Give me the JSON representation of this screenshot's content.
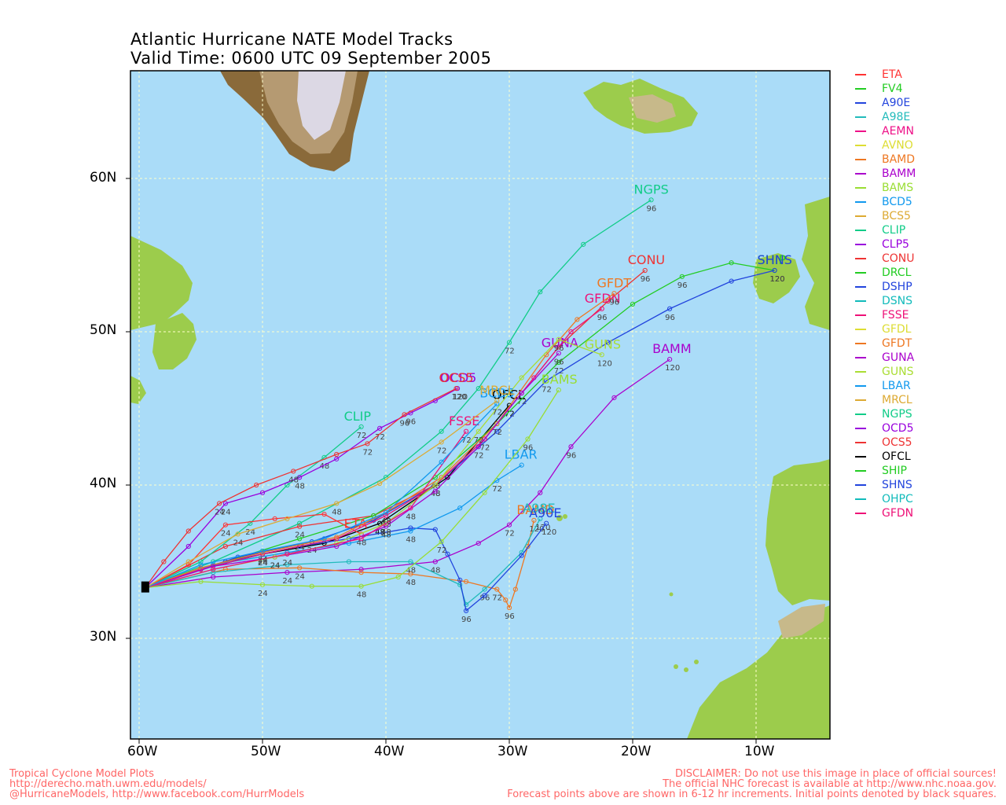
{
  "title": {
    "line1": "Atlantic Hurricane NATE Model Tracks",
    "line2": "Valid Time: 0600 UTC 09 September 2005"
  },
  "axes": {
    "lon_labels": [
      "60W",
      "50W",
      "40W",
      "30W",
      "20W",
      "10W"
    ],
    "lat_labels": [
      "60N",
      "50N",
      "40N",
      "30N"
    ]
  },
  "colors": {
    "ocean": "#aadcf8",
    "land": "#9ccc4c",
    "grid": "#ffffcc"
  },
  "legend": [
    {
      "name": "ETA",
      "color": "#ff3333"
    },
    {
      "name": "FV4",
      "color": "#22cc22"
    },
    {
      "name": "A90E",
      "color": "#2244dd"
    },
    {
      "name": "A98E",
      "color": "#22bbbb"
    },
    {
      "name": "AEMN",
      "color": "#ee1188"
    },
    {
      "name": "AVNO",
      "color": "#dddd33"
    },
    {
      "name": "BAMD",
      "color": "#ee7722"
    },
    {
      "name": "BAMM",
      "color": "#aa00cc"
    },
    {
      "name": "BAMS",
      "color": "#99dd33"
    },
    {
      "name": "BCD5",
      "color": "#1199ee"
    },
    {
      "name": "BCS5",
      "color": "#ddaa33"
    },
    {
      "name": "CLIP",
      "color": "#11cc88"
    },
    {
      "name": "CLP5",
      "color": "#9900dd"
    },
    {
      "name": "CONU",
      "color": "#ee3333"
    },
    {
      "name": "DRCL",
      "color": "#22cc22"
    },
    {
      "name": "DSHP",
      "color": "#2244dd"
    },
    {
      "name": "DSNS",
      "color": "#11bbbb"
    },
    {
      "name": "FSSE",
      "color": "#ee1177"
    },
    {
      "name": "GFDL",
      "color": "#dddd33"
    },
    {
      "name": "GFDT",
      "color": "#ee7722"
    },
    {
      "name": "GUNA",
      "color": "#aa00cc"
    },
    {
      "name": "GUNS",
      "color": "#aadd33"
    },
    {
      "name": "LBAR",
      "color": "#1199ee"
    },
    {
      "name": "MRCL",
      "color": "#ddaa33"
    },
    {
      "name": "NGPS",
      "color": "#11cc88"
    },
    {
      "name": "OCD5",
      "color": "#9900dd"
    },
    {
      "name": "OCS5",
      "color": "#ee3333"
    },
    {
      "name": "OFCL",
      "color": "#000000"
    },
    {
      "name": "SHIP",
      "color": "#22cc22"
    },
    {
      "name": "SHNS",
      "color": "#2244dd"
    },
    {
      "name": "OHPC",
      "color": "#11bbbb"
    },
    {
      "name": "GFDN",
      "color": "#ee1177"
    }
  ],
  "tracks": [
    {
      "name": "NGPS",
      "label": "NGPS",
      "color": "#11cc88",
      "points": [
        [
          -59.5,
          33.3
        ],
        [
          -54,
          35
        ],
        [
          -47,
          37.5
        ],
        [
          -40,
          40.5
        ],
        [
          -35.5,
          43.5
        ],
        [
          -32.5,
          46.3
        ],
        [
          -30,
          49.3
        ],
        [
          -27.5,
          52.6
        ],
        [
          -24,
          55.7
        ],
        [
          -18.5,
          58.6
        ]
      ],
      "hours": [
        "",
        "",
        "",
        "",
        "",
        "",
        "72",
        "",
        "",
        "96"
      ]
    },
    {
      "name": "CONU",
      "label": "CONU",
      "color": "#ee3333",
      "points": [
        [
          -59.5,
          33.3
        ],
        [
          -53,
          36
        ],
        [
          -47,
          37.3
        ],
        [
          -41,
          38
        ],
        [
          -36,
          40
        ],
        [
          -32,
          43
        ],
        [
          -29,
          46
        ],
        [
          -26,
          49
        ],
        [
          -22,
          52
        ],
        [
          -19,
          54
        ]
      ],
      "hours": [
        "",
        "",
        "24",
        "",
        "48",
        "",
        "72",
        "",
        "",
        "96"
      ]
    },
    {
      "name": "OFCL",
      "label": "OFCL",
      "color": "#000000",
      "points": [
        [
          -59.5,
          33.3
        ],
        [
          -55,
          34.5
        ],
        [
          -50,
          35.5
        ],
        [
          -45,
          36.2
        ],
        [
          -40.5,
          37.5
        ],
        [
          -35,
          40.5
        ],
        [
          -30,
          45.2
        ]
      ],
      "hours": [
        "",
        "",
        "24",
        "",
        "48",
        "",
        "72"
      ]
    },
    {
      "name": "SHIP",
      "label": "SHIP",
      "color": "#22cc22",
      "points": [
        [
          -59.5,
          33.3
        ],
        [
          -53,
          35
        ],
        [
          -47,
          36.5
        ],
        [
          -41,
          38
        ],
        [
          -36,
          40.5
        ],
        [
          -31,
          44
        ],
        [
          -26,
          48
        ],
        [
          -20,
          51.8
        ],
        [
          -16,
          53.6
        ],
        [
          -12,
          54.5
        ],
        [
          -8.5,
          54
        ]
      ],
      "hours": [
        "",
        "",
        "24",
        "",
        "48",
        "",
        "72",
        "",
        "96",
        "",
        "120"
      ]
    },
    {
      "name": "SHNS",
      "label": "SHNS",
      "color": "#2244dd",
      "points": [
        [
          -59.5,
          33.3
        ],
        [
          -52,
          35.3
        ],
        [
          -46,
          36.3
        ],
        [
          -41,
          37.7
        ],
        [
          -36,
          40
        ],
        [
          -31,
          43.5
        ],
        [
          -27,
          46.8
        ],
        [
          -22,
          49.3
        ],
        [
          -17,
          51.5
        ],
        [
          -12,
          53.3
        ],
        [
          -8.5,
          54
        ]
      ],
      "hours": [
        "",
        "",
        "24",
        "",
        "48",
        "",
        "72",
        "",
        "96",
        "",
        "120"
      ]
    },
    {
      "name": "BAMM",
      "label": "BAMM",
      "color": "#aa00cc",
      "points": [
        [
          -59.5,
          33.3
        ],
        [
          -54,
          34
        ],
        [
          -48,
          34.3
        ],
        [
          -42,
          34.5
        ],
        [
          -36,
          35
        ],
        [
          -32.5,
          36.2
        ],
        [
          -30,
          37.4
        ],
        [
          -27.5,
          39.5
        ],
        [
          -25,
          42.5
        ],
        [
          -21.5,
          45.7
        ],
        [
          -17,
          48.2
        ]
      ],
      "hours": [
        "",
        "",
        "24",
        "",
        "48",
        "",
        "72",
        "",
        "96",
        "",
        "120"
      ]
    },
    {
      "name": "BAMD",
      "label": "BAMD",
      "color": "#ee7722",
      "points": [
        [
          -59.5,
          33.3
        ],
        [
          -53,
          34.5
        ],
        [
          -47,
          34.6
        ],
        [
          -42,
          34.3
        ],
        [
          -38,
          34.2
        ],
        [
          -33.5,
          33.7
        ],
        [
          -31,
          33.2
        ],
        [
          -30.3,
          32.5
        ],
        [
          -30,
          32
        ],
        [
          -29.5,
          33.2
        ],
        [
          -28.5,
          36
        ],
        [
          -28,
          37.7
        ]
      ],
      "hours": [
        "",
        "",
        "24",
        "",
        "48",
        "",
        "72",
        "",
        "96",
        "",
        "",
        "120"
      ]
    },
    {
      "name": "A98E",
      "label": "A98E",
      "color": "#22bbbb",
      "points": [
        [
          -59.5,
          33.3
        ],
        [
          -54,
          34.3
        ],
        [
          -48,
          34.8
        ],
        [
          -43,
          35
        ],
        [
          -38,
          35
        ],
        [
          -34,
          33.5
        ],
        [
          -33.5,
          32.2
        ],
        [
          -32,
          33.2
        ],
        [
          -29,
          35.6
        ],
        [
          -27.5,
          37.8
        ]
      ],
      "hours": [
        "",
        "",
        "",
        "",
        "48",
        "",
        "",
        "96",
        "",
        "120"
      ]
    },
    {
      "name": "A90E",
      "label": "A90E",
      "color": "#2244dd",
      "points": [
        [
          -59.5,
          33.3
        ],
        [
          -53,
          35
        ],
        [
          -47,
          36
        ],
        [
          -43,
          36.5
        ],
        [
          -38,
          37.2
        ],
        [
          -36,
          37.1
        ],
        [
          -35,
          35.5
        ],
        [
          -34,
          33.8
        ],
        [
          -33.5,
          31.8
        ],
        [
          -32,
          32.8
        ],
        [
          -29,
          35.4
        ],
        [
          -27,
          37.5
        ]
      ],
      "hours": [
        "",
        "",
        "",
        "",
        "",
        "",
        "",
        "",
        "96",
        "",
        "",
        "120"
      ]
    },
    {
      "name": "LBAR",
      "label": "LBAR",
      "color": "#1199ee",
      "points": [
        [
          -59.5,
          33.3
        ],
        [
          -54,
          34.8
        ],
        [
          -48,
          35.6
        ],
        [
          -43,
          36.2
        ],
        [
          -38,
          37
        ],
        [
          -34,
          38.5
        ],
        [
          -31,
          40.3
        ],
        [
          -29,
          41.3
        ]
      ],
      "hours": [
        "",
        "",
        "",
        "",
        "48",
        "",
        "72",
        ""
      ]
    },
    {
      "name": "CLIP",
      "label": "CLIP",
      "color": "#11cc88",
      "points": [
        [
          -59.5,
          33.3
        ],
        [
          -55,
          35
        ],
        [
          -51,
          37.5
        ],
        [
          -48,
          40
        ],
        [
          -45,
          41.8
        ],
        [
          -42,
          43.8
        ]
      ],
      "hours": [
        "",
        "",
        "24",
        "",
        "48",
        "72"
      ]
    },
    {
      "name": "OCD5",
      "label": "OCD5",
      "color": "#9900dd",
      "points": [
        [
          -59.5,
          33.3
        ],
        [
          -56,
          36
        ],
        [
          -53,
          38.8
        ],
        [
          -50,
          39.5
        ],
        [
          -47,
          40.5
        ],
        [
          -44,
          41.7
        ],
        [
          -40.5,
          43.7
        ],
        [
          -38,
          44.7
        ],
        [
          -36,
          45.5
        ],
        [
          -34.2,
          46.3
        ]
      ],
      "hours": [
        "",
        "",
        "24",
        "",
        "48",
        "",
        "72",
        "96",
        "",
        "120"
      ]
    },
    {
      "name": "OCS5",
      "label": "OCS5",
      "color": "#ee3333",
      "points": [
        [
          -59.5,
          33.3
        ],
        [
          -58,
          35
        ],
        [
          -56,
          37
        ],
        [
          -53.5,
          38.8
        ],
        [
          -50.5,
          40
        ],
        [
          -47.5,
          40.9
        ],
        [
          -44,
          42
        ],
        [
          -41.5,
          42.7
        ],
        [
          -38.5,
          44.6
        ],
        [
          -34.3,
          46.3
        ]
      ],
      "hours": [
        "",
        "",
        "",
        "24",
        "",
        "48",
        "",
        "72",
        "96",
        "120"
      ]
    },
    {
      "name": "ETA",
      "label": "ETA",
      "color": "#ff3333",
      "points": [
        [
          -59.5,
          33.3
        ],
        [
          -56,
          34.8
        ],
        [
          -53,
          37.4
        ],
        [
          -49,
          37.8
        ],
        [
          -45,
          38.1
        ],
        [
          -42,
          36.8
        ]
      ],
      "hours": [
        "",
        "",
        "24",
        "",
        "",
        "48"
      ]
    },
    {
      "name": "GFDN",
      "label": "GFDN",
      "color": "#ee1177",
      "points": [
        [
          -59.5,
          33.3
        ],
        [
          -55,
          34.5
        ],
        [
          -50,
          35.5
        ],
        [
          -44,
          36.5
        ],
        [
          -40,
          38
        ],
        [
          -36,
          40
        ],
        [
          -32,
          43
        ],
        [
          -28,
          47
        ],
        [
          -25,
          50
        ],
        [
          -22.5,
          51.5
        ]
      ],
      "hours": [
        "",
        "",
        "24",
        "",
        "48",
        "",
        "72",
        "",
        "",
        "96"
      ]
    },
    {
      "name": "GFDT",
      "label": "GFDT",
      "color": "#ee7722",
      "points": [
        [
          -59.5,
          33.3
        ],
        [
          -55,
          34.6
        ],
        [
          -50,
          35.6
        ],
        [
          -44,
          36.6
        ],
        [
          -40,
          38.2
        ],
        [
          -35.5,
          40.5
        ],
        [
          -31,
          44
        ],
        [
          -27,
          48.5
        ],
        [
          -24.5,
          50.8
        ],
        [
          -21.5,
          52.5
        ]
      ],
      "hours": [
        "",
        "",
        "24",
        "",
        "48",
        "",
        "72",
        "",
        "",
        "96"
      ]
    },
    {
      "name": "GUNA",
      "label": "GUNA",
      "color": "#aa00cc",
      "points": [
        [
          -59.5,
          33.3
        ],
        [
          -54,
          34.7
        ],
        [
          -49,
          35.3
        ],
        [
          -44,
          36
        ],
        [
          -40,
          37.3
        ],
        [
          -36,
          39.6
        ],
        [
          -32.5,
          42.5
        ],
        [
          -29,
          46
        ],
        [
          -26,
          48.6
        ]
      ],
      "hours": [
        "",
        "",
        "24",
        "",
        "48",
        "",
        "72",
        "",
        "96"
      ]
    },
    {
      "name": "GUNS",
      "label": "GUNS",
      "color": "#aadd33",
      "points": [
        [
          -59.5,
          33.3
        ],
        [
          -54,
          34.5
        ],
        [
          -49,
          35.3
        ],
        [
          -44,
          36.2
        ],
        [
          -40,
          37.5
        ],
        [
          -36,
          40
        ],
        [
          -32.5,
          43.5
        ],
        [
          -29,
          47
        ],
        [
          -26,
          49.5
        ],
        [
          -22.5,
          48.5
        ]
      ],
      "hours": [
        "",
        "",
        "24",
        "",
        "48",
        "",
        "72",
        "",
        "96",
        "120"
      ]
    },
    {
      "name": "BAMS",
      "label": "BAMS",
      "color": "#99dd33",
      "points": [
        [
          -59.5,
          33.3
        ],
        [
          -55,
          33.7
        ],
        [
          -50,
          33.5
        ],
        [
          -46,
          33.4
        ],
        [
          -42,
          33.4
        ],
        [
          -39,
          34
        ],
        [
          -35.5,
          36.3
        ],
        [
          -32,
          39.5
        ],
        [
          -28.5,
          43
        ],
        [
          -26,
          46.2
        ]
      ],
      "hours": [
        "",
        "",
        "24",
        "",
        "48",
        "",
        "72",
        "",
        "96",
        ""
      ]
    },
    {
      "name": "FSSE",
      "label": "FSSE",
      "color": "#ee1177",
      "points": [
        [
          -59.5,
          33.3
        ],
        [
          -54,
          34.5
        ],
        [
          -48,
          35.5
        ],
        [
          -42,
          36.5
        ],
        [
          -38,
          38.5
        ],
        [
          -33.5,
          43.5
        ]
      ],
      "hours": [
        "",
        "",
        "24",
        "",
        "48",
        "72"
      ]
    },
    {
      "name": "BCD5",
      "label": "BCD5",
      "color": "#1199ee",
      "points": [
        [
          -59.5,
          33.3
        ],
        [
          -55,
          34.8
        ],
        [
          -50,
          35.7
        ],
        [
          -45,
          36.5
        ],
        [
          -40,
          38.2
        ],
        [
          -35.5,
          41.5
        ],
        [
          -31,
          45.3
        ]
      ],
      "hours": [
        "",
        "",
        "24",
        "",
        "48",
        "",
        "72"
      ]
    },
    {
      "name": "MRCL",
      "label": "MRCL",
      "color": "#ddaa33",
      "points": [
        [
          -59.5,
          33.3
        ],
        [
          -56,
          35
        ],
        [
          -52,
          36.8
        ],
        [
          -48,
          37.8
        ],
        [
          -44,
          38.8
        ],
        [
          -40.5,
          40.1
        ],
        [
          -35.5,
          42.8
        ],
        [
          -31,
          45.5
        ]
      ],
      "hours": [
        "",
        "",
        "24",
        "",
        "48",
        "",
        "72",
        ""
      ]
    }
  ],
  "footer": {
    "left1": "Tropical Cyclone Model Plots",
    "left2": "http://derecho.math.uwm.edu/models/",
    "left3": "@HurricaneModels, http://www.facebook.com/HurrModels",
    "right1": "DISCLAIMER: Do not use this image in place of official sources!",
    "right2": "The official NHC forecast is available at http://www.nhc.noaa.gov.",
    "right3": "Forecast points above are shown in 6-12 hr increments. Initial points denoted by black squares."
  }
}
